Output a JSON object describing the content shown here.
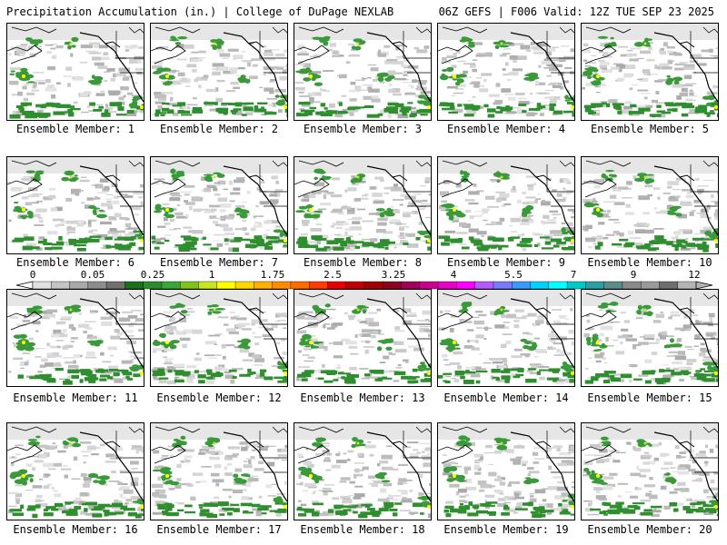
{
  "header": {
    "title_left": "Precipitation Accumulation (in.) | College of DuPage NEXLAB",
    "title_right": "06Z GEFS | F006 Valid: 12Z TUE SEP 23 2025"
  },
  "panels": [
    {
      "label": "Ensemble Member: 1"
    },
    {
      "label": "Ensemble Member: 2"
    },
    {
      "label": "Ensemble Member: 3"
    },
    {
      "label": "Ensemble Member: 4"
    },
    {
      "label": "Ensemble Member: 5"
    },
    {
      "label": "Ensemble Member: 6"
    },
    {
      "label": "Ensemble Member: 7"
    },
    {
      "label": "Ensemble Member: 8"
    },
    {
      "label": "Ensemble Member: 9"
    },
    {
      "label": "Ensemble Member: 10"
    },
    {
      "label": "Ensemble Member: 11"
    },
    {
      "label": "Ensemble Member: 12"
    },
    {
      "label": "Ensemble Member: 13"
    },
    {
      "label": "Ensemble Member: 14"
    },
    {
      "label": "Ensemble Member: 15"
    },
    {
      "label": "Ensemble Member: 16"
    },
    {
      "label": "Ensemble Member: 17"
    },
    {
      "label": "Ensemble Member: 18"
    },
    {
      "label": "Ensemble Member: 19"
    },
    {
      "label": "Ensemble Member: 20"
    }
  ],
  "colorbar": {
    "tick_labels": [
      "0",
      "0.05",
      "0.25",
      "1",
      "1.75",
      "2.5",
      "3.25",
      "4",
      "5.5",
      "7",
      "9",
      "12"
    ],
    "colors": [
      "#e0e0e0",
      "#c4c4c4",
      "#a8a8a8",
      "#8c8c8c",
      "#707070",
      "#1e6e1e",
      "#2d8a2d",
      "#3aa53a",
      "#7fc31c",
      "#c8e61e",
      "#ffff00",
      "#ffd700",
      "#ffb000",
      "#ff8c00",
      "#ff6a00",
      "#ff3c00",
      "#e60000",
      "#c00000",
      "#a00000",
      "#8c0020",
      "#a0005a",
      "#c8008c",
      "#e600c8",
      "#ff00ff",
      "#b45aff",
      "#7a7aff",
      "#3c9aff",
      "#00d2ff",
      "#00ffff",
      "#00c8c8",
      "#2aa0a0",
      "#5a8c8c",
      "#8a8a8a",
      "#9a9a9a",
      "#6e6e6e",
      "#b4b4b4"
    ]
  },
  "colors": {
    "land_precip_green": "#2f8f2f",
    "light_precip_gray": "#bdbdbd",
    "map_lines": "#000000"
  }
}
